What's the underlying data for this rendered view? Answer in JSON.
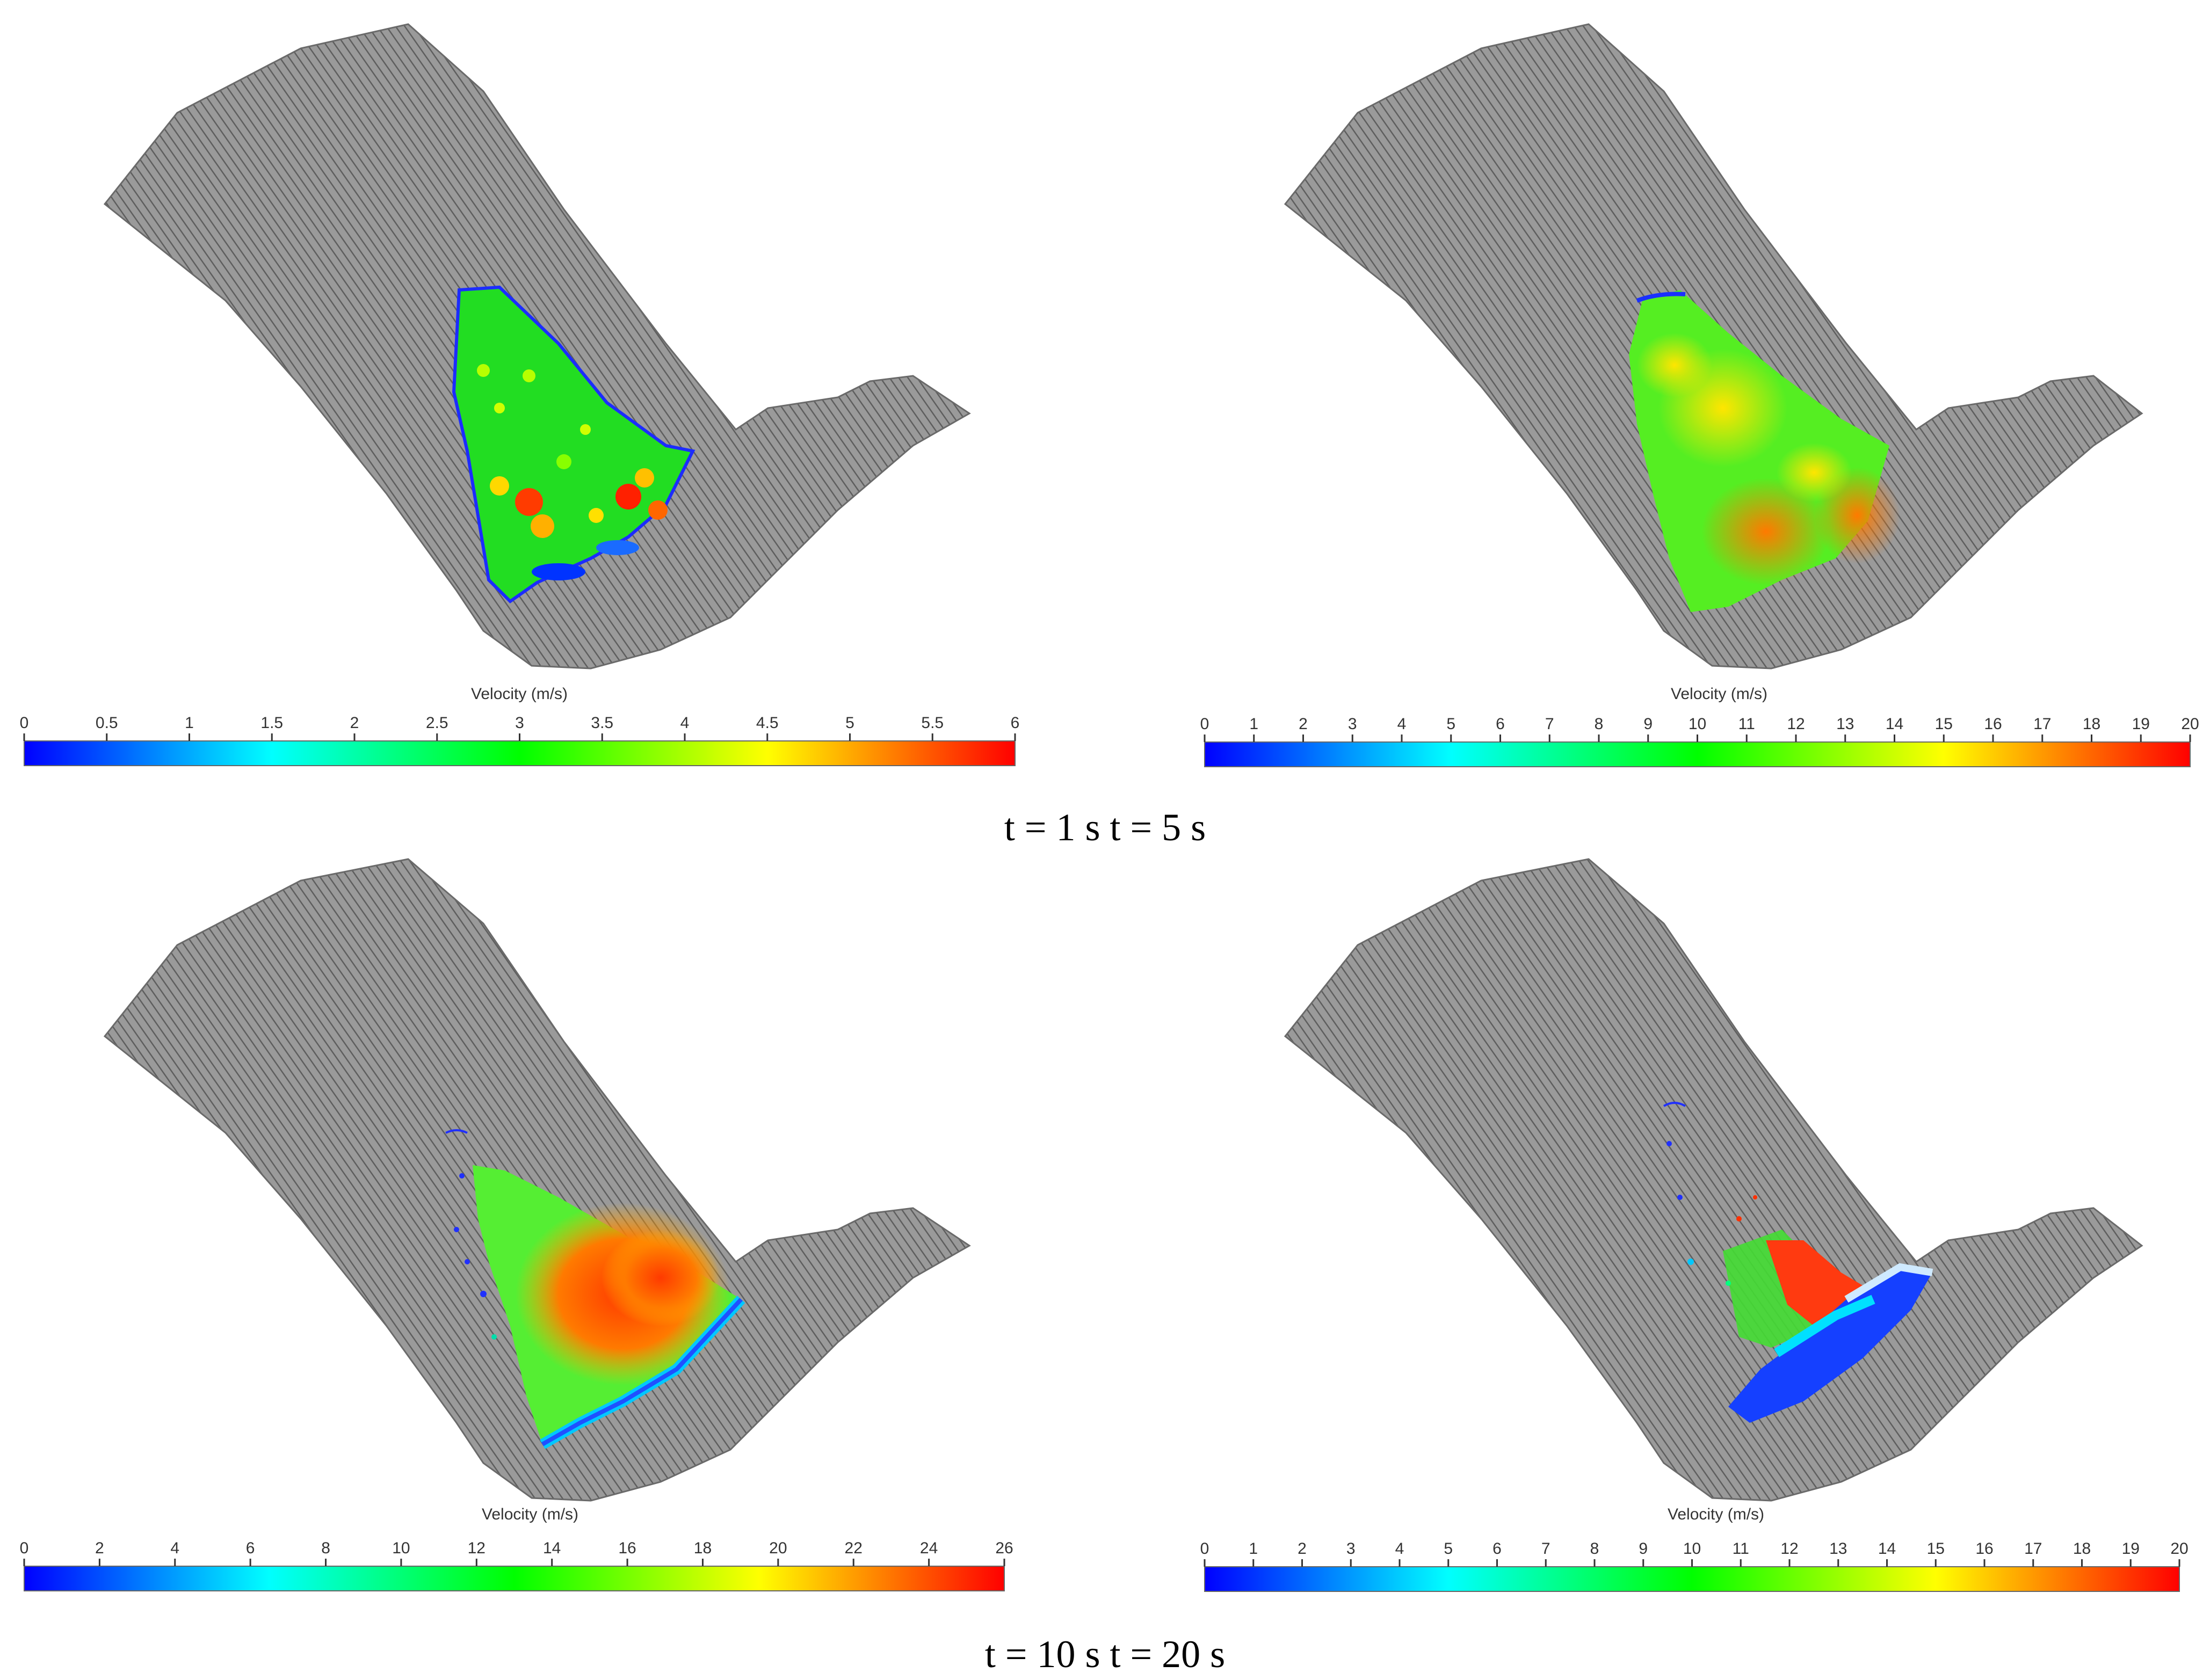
{
  "panels": [
    {
      "id": "t1",
      "colorbar_title": "Velocity (m/s)",
      "ticks": [
        "0",
        "0.5",
        "1",
        "1.5",
        "2",
        "2.5",
        "3",
        "3.5",
        "4",
        "4.5",
        "5",
        "5.5",
        "6"
      ],
      "vmin": 0,
      "vmax": 6,
      "flow": "mid-slope green mass with red hotspots"
    },
    {
      "id": "t5",
      "colorbar_title": "Velocity (m/s)",
      "ticks": [
        "0",
        "1",
        "2",
        "3",
        "4",
        "5",
        "6",
        "7",
        "8",
        "9",
        "10",
        "11",
        "12",
        "13",
        "14",
        "15",
        "16",
        "17",
        "18",
        "19",
        "20"
      ],
      "vmin": 0,
      "vmax": 20,
      "flow": "mid-slope yellow-green mass"
    },
    {
      "id": "t10",
      "colorbar_title": "Velocity (m/s)",
      "ticks": [
        "0",
        "2",
        "4",
        "6",
        "8",
        "10",
        "12",
        "14",
        "16",
        "18",
        "20",
        "22",
        "24",
        "26"
      ],
      "vmin": 0,
      "vmax": 26,
      "flow": "orange-red fast mass with blue fringe"
    },
    {
      "id": "t20",
      "colorbar_title": "Velocity (m/s)",
      "ticks": [
        "0",
        "1",
        "2",
        "3",
        "4",
        "5",
        "6",
        "7",
        "8",
        "9",
        "10",
        "11",
        "12",
        "13",
        "14",
        "15",
        "16",
        "17",
        "18",
        "19",
        "20"
      ],
      "vmin": 0,
      "vmax": 20,
      "flow": "blue deposit at slope toe"
    }
  ],
  "captions": {
    "top": "t = 1 s t = 5 s",
    "bottom": "t = 10 s t = 20 s"
  },
  "colormap": [
    "#0000ff",
    "#00ffff",
    "#00ff00",
    "#ffff00",
    "#ff0000"
  ]
}
